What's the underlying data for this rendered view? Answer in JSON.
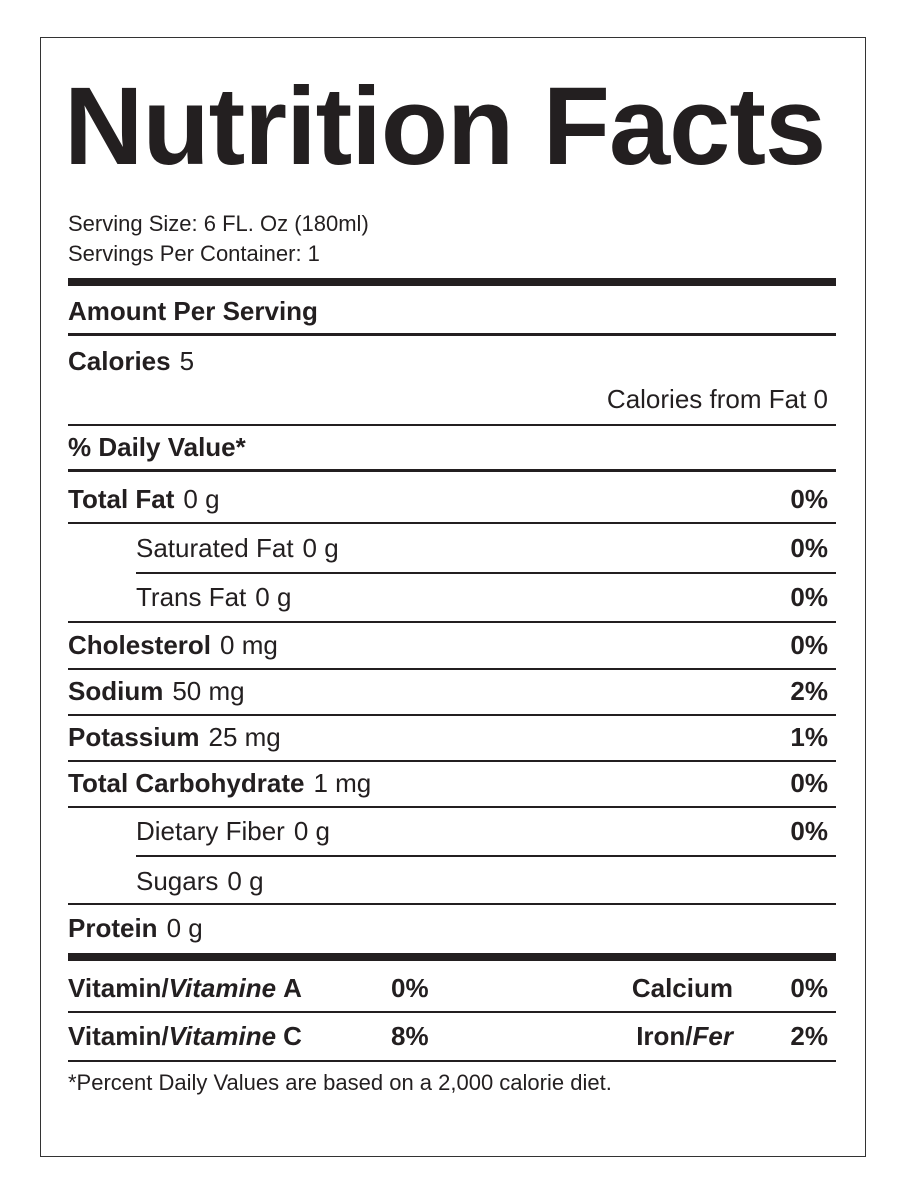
{
  "title": "Nutrition Facts",
  "serving_size": "Serving Size: 6 FL. Oz (180ml)",
  "servings_per_container": "Servings Per Container: 1",
  "amount_per_serving": "Amount Per Serving",
  "calories": {
    "label": "Calories",
    "value": "5"
  },
  "calories_from_fat": "Calories from Fat 0",
  "daily_value_header": "% Daily Value*",
  "nutrients": [
    {
      "name": "Total Fat",
      "amount": "0 g",
      "daily_value": "0%"
    },
    {
      "name": "Saturated Fat",
      "amount": "0 g",
      "daily_value": "0%"
    },
    {
      "name": "Trans Fat",
      "amount": "0 g",
      "daily_value": "0%"
    },
    {
      "name": "Cholesterol",
      "amount": "0 mg",
      "daily_value": "0%"
    },
    {
      "name": "Sodium",
      "amount": "50 mg",
      "daily_value": "2%"
    },
    {
      "name": "Potassium",
      "amount": "25 mg",
      "daily_value": "1%"
    },
    {
      "name": "Total Carbohydrate",
      "amount": "1 mg",
      "daily_value": "0%"
    },
    {
      "name": "Dietary Fiber",
      "amount": "0 g",
      "daily_value": "0%"
    },
    {
      "name": "Sugars",
      "amount": "0 g"
    },
    {
      "name": "Protein",
      "amount": "0 g"
    }
  ],
  "vitamin_rows": [
    {
      "left": {
        "parts": [
          "Vitamin/",
          "Vitamine",
          "A"
        ],
        "daily_value": "0%"
      },
      "right": {
        "parts": [
          "Calcium"
        ],
        "daily_value": "0%"
      }
    },
    {
      "left": {
        "parts": [
          "Vitamin/",
          "Vitamine",
          "C"
        ],
        "daily_value": "8%"
      },
      "right": {
        "parts": [
          "Iron/",
          "Fer"
        ],
        "daily_value": "2%"
      }
    }
  ],
  "footnote": "*Percent Daily Values are based on a 2,000 calorie diet."
}
